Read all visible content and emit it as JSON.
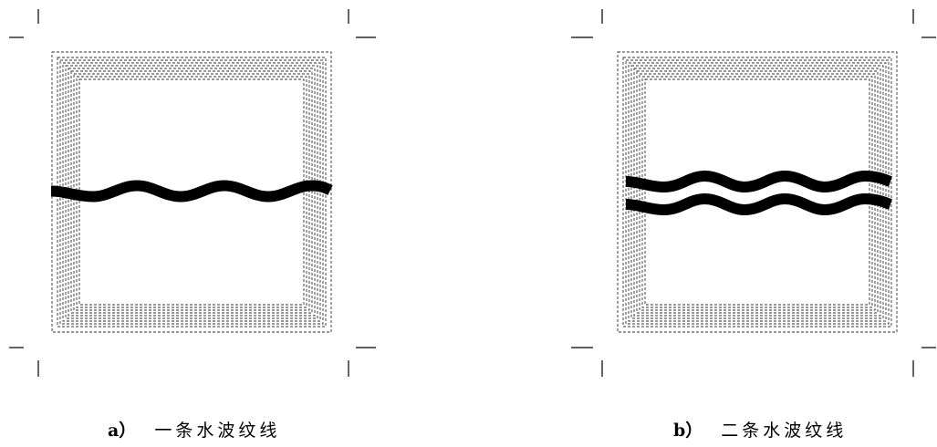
{
  "panels": [
    {
      "id": "a",
      "label": "a）",
      "title": "一条水波纹线",
      "wave_count": 1
    },
    {
      "id": "b",
      "label": "b）",
      "title": "二条水波纹线",
      "wave_count": 2
    }
  ],
  "colors": {
    "ink": "#000000",
    "background": "#ffffff",
    "dashed_border": "#333333"
  }
}
